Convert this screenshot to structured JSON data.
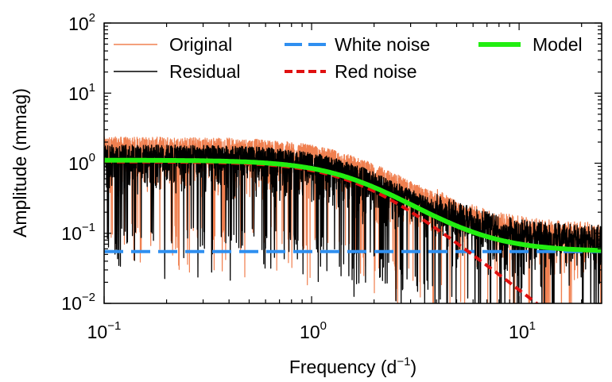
{
  "chart_data": {
    "type": "line",
    "title": "",
    "xlabel": "Frequency (d",
    "xlabel_superscript": "−1",
    "xlabel_suffix": ")",
    "ylabel": "Amplitude (mmag)",
    "xscale": "log",
    "yscale": "log",
    "xlim": [
      0.1,
      25
    ],
    "ylim": [
      0.01,
      100
    ],
    "grid": false,
    "legend_position": "top",
    "x_ticks": [
      {
        "base": "10",
        "exp": "−1"
      },
      {
        "base": "10",
        "exp": "0"
      },
      {
        "base": "10",
        "exp": "1"
      }
    ],
    "y_ticks": [
      {
        "base": "10",
        "exp": "−2"
      },
      {
        "base": "10",
        "exp": "−1"
      },
      {
        "base": "10",
        "exp": "0"
      },
      {
        "base": "10",
        "exp": "1"
      },
      {
        "base": "10",
        "exp": "2"
      }
    ],
    "model_params": {
      "a0": 1.05,
      "tau_d": 0.62,
      "gamma": 2.3,
      "white": 0.055
    },
    "series": [
      {
        "name": "Original",
        "color": "#f08050",
        "style": "solid",
        "description_points": [
          [
            0.1,
            2.6
          ],
          [
            0.106,
            0.05
          ],
          [
            0.12,
            2.1
          ],
          [
            0.13,
            1.3
          ],
          [
            0.14,
            2.4
          ],
          [
            0.2,
            1.3
          ],
          [
            0.3,
            1.2
          ],
          [
            0.5,
            1.0
          ],
          [
            1.0,
            0.6
          ],
          [
            2.0,
            0.35
          ],
          [
            5.0,
            0.12
          ],
          [
            10.0,
            0.12
          ],
          [
            25.0,
            0.1
          ]
        ]
      },
      {
        "name": "Residual",
        "color": "#000000",
        "style": "solid",
        "description_points": [
          [
            0.1,
            2.0
          ],
          [
            0.103,
            0.04
          ],
          [
            0.12,
            1.8
          ],
          [
            0.133,
            0.09
          ],
          [
            0.15,
            1.2
          ],
          [
            0.2,
            1.0
          ],
          [
            0.3,
            1.1
          ],
          [
            0.5,
            0.9
          ],
          [
            1.0,
            0.55
          ],
          [
            2.0,
            0.3
          ],
          [
            5.0,
            0.1
          ],
          [
            10.0,
            0.1
          ],
          [
            25.0,
            0.09
          ]
        ]
      },
      {
        "name": "White noise",
        "color": "#2f8ff0",
        "style": "dashed",
        "description_points": [
          [
            0.1,
            0.055
          ],
          [
            25.0,
            0.055
          ]
        ]
      },
      {
        "name": "Red noise",
        "color": "#e01010",
        "style": "dotted",
        "description_points": [
          [
            0.1,
            1.05
          ],
          [
            0.5,
            0.98
          ],
          [
            1.0,
            0.68
          ],
          [
            2.0,
            0.22
          ],
          [
            5.0,
            0.023
          ],
          [
            10.0,
            0.0047
          ]
        ]
      },
      {
        "name": "Model",
        "color": "#22ee11",
        "style": "solid",
        "description_points": [
          [
            0.1,
            1.1
          ],
          [
            0.5,
            1.03
          ],
          [
            1.0,
            0.73
          ],
          [
            2.0,
            0.27
          ],
          [
            5.0,
            0.078
          ],
          [
            10.0,
            0.06
          ],
          [
            25.0,
            0.055
          ]
        ]
      }
    ]
  }
}
